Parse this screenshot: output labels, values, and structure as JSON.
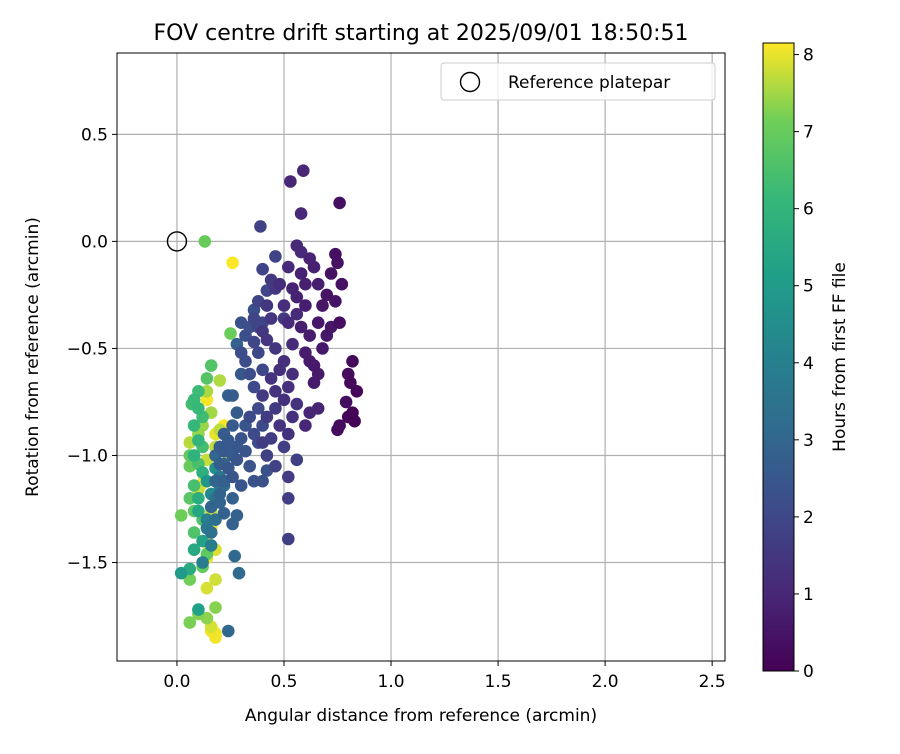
{
  "chart_data": {
    "type": "scatter",
    "title": "FOV centre drift starting at 2025/09/01 18:50:51",
    "xlabel": "Angular distance from reference (arcmin)",
    "ylabel": "Rotation from reference (arcmin)",
    "xlim": [
      -0.28,
      2.56
    ],
    "ylim": [
      -1.96,
      0.88
    ],
    "x_ticks": [
      0.0,
      0.5,
      1.0,
      1.5,
      2.0,
      2.5
    ],
    "x_tick_labels": [
      "0.0",
      "0.5",
      "1.0",
      "1.5",
      "2.0",
      "2.5"
    ],
    "y_ticks": [
      0.5,
      0.0,
      -0.5,
      -1.0,
      -1.5
    ],
    "y_tick_labels": [
      "0.5",
      "0.0",
      "−0.5",
      "−1.0",
      "−1.5"
    ],
    "grid": true,
    "colormap": "viridis",
    "colorbar": {
      "label": "Hours from first FF file",
      "range": [
        0,
        8.15
      ],
      "ticks": [
        0,
        1,
        2,
        3,
        4,
        5,
        6,
        7,
        8
      ],
      "tick_labels": [
        "0",
        "1",
        "2",
        "3",
        "4",
        "5",
        "6",
        "7",
        "8"
      ]
    },
    "legend": {
      "placement": "upper-right",
      "entries": [
        {
          "label": "Reference platepar",
          "marker": "open-circle"
        }
      ]
    },
    "reference_point": {
      "x": 0.0,
      "y": 0.0
    },
    "points": [
      [
        0.82,
        -0.8,
        0.05
      ],
      [
        0.83,
        -0.84,
        0.08
      ],
      [
        0.8,
        -0.82,
        0.12
      ],
      [
        0.84,
        -0.7,
        0.15
      ],
      [
        0.81,
        -0.66,
        0.18
      ],
      [
        0.82,
        -0.56,
        0.22
      ],
      [
        0.8,
        -0.62,
        0.25
      ],
      [
        0.76,
        -0.86,
        0.28
      ],
      [
        0.75,
        -0.88,
        0.3
      ],
      [
        0.79,
        -0.75,
        0.32
      ],
      [
        0.76,
        -0.38,
        0.35
      ],
      [
        0.74,
        -0.06,
        0.38
      ],
      [
        0.76,
        0.18,
        0.4
      ],
      [
        0.75,
        -0.1,
        0.42
      ],
      [
        0.77,
        -0.2,
        0.44
      ],
      [
        0.72,
        -0.15,
        0.46
      ],
      [
        0.7,
        -0.25,
        0.48
      ],
      [
        0.74,
        -0.28,
        0.5
      ],
      [
        0.68,
        -0.3,
        0.52
      ],
      [
        0.72,
        -0.4,
        0.54
      ],
      [
        0.7,
        -0.44,
        0.56
      ],
      [
        0.66,
        -0.38,
        0.58
      ],
      [
        0.68,
        -0.5,
        0.6
      ],
      [
        0.64,
        -0.58,
        0.62
      ],
      [
        0.66,
        -0.62,
        0.64
      ],
      [
        0.62,
        -0.56,
        0.66
      ],
      [
        0.64,
        -0.66,
        0.68
      ],
      [
        0.6,
        -0.52,
        0.7
      ],
      [
        0.62,
        -0.44,
        0.72
      ],
      [
        0.58,
        -0.4,
        0.74
      ],
      [
        0.6,
        -0.3,
        0.76
      ],
      [
        0.66,
        -0.2,
        0.78
      ],
      [
        0.64,
        -0.12,
        0.8
      ],
      [
        0.6,
        -0.2,
        0.82
      ],
      [
        0.56,
        -0.26,
        0.84
      ],
      [
        0.58,
        -0.15,
        0.86
      ],
      [
        0.54,
        -0.22,
        0.88
      ],
      [
        0.62,
        -0.08,
        0.9
      ],
      [
        0.66,
        -0.78,
        0.92
      ],
      [
        0.62,
        -0.8,
        0.94
      ],
      [
        0.6,
        -0.86,
        0.96
      ],
      [
        0.59,
        0.33,
        0.98
      ],
      [
        0.53,
        0.28,
        1.0
      ],
      [
        0.58,
        0.13,
        1.02
      ],
      [
        0.56,
        -0.02,
        1.04
      ],
      [
        0.58,
        -0.05,
        1.06
      ],
      [
        0.52,
        -0.12,
        1.08
      ],
      [
        0.56,
        -0.34,
        1.1
      ],
      [
        0.52,
        -0.38,
        1.12
      ],
      [
        0.54,
        -0.48,
        1.14
      ],
      [
        0.5,
        -0.3,
        1.16
      ],
      [
        0.48,
        -0.2,
        1.18
      ],
      [
        0.54,
        -0.62,
        1.2
      ],
      [
        0.5,
        -0.56,
        1.22
      ],
      [
        0.52,
        -0.68,
        1.24
      ],
      [
        0.48,
        -0.6,
        1.26
      ],
      [
        0.5,
        -0.74,
        1.28
      ],
      [
        0.54,
        -0.82,
        1.3
      ],
      [
        0.56,
        -0.76,
        1.32
      ],
      [
        0.52,
        -0.9,
        1.34
      ],
      [
        0.48,
        -0.86,
        1.36
      ],
      [
        0.46,
        -0.7,
        1.38
      ],
      [
        0.44,
        -0.64,
        1.4
      ],
      [
        0.46,
        -0.5,
        1.42
      ],
      [
        0.42,
        -0.46,
        1.44
      ],
      [
        0.44,
        -0.36,
        1.46
      ],
      [
        0.4,
        -0.42,
        1.48
      ],
      [
        0.46,
        -0.22,
        1.5
      ],
      [
        0.42,
        -0.3,
        1.52
      ],
      [
        0.44,
        -0.18,
        1.54
      ],
      [
        0.5,
        -0.36,
        1.56
      ],
      [
        0.46,
        -0.78,
        1.58
      ],
      [
        0.42,
        -0.82,
        1.6
      ],
      [
        0.4,
        -0.72,
        1.62
      ],
      [
        0.44,
        -0.92,
        1.64
      ],
      [
        0.4,
        -0.94,
        1.66
      ],
      [
        0.52,
        -1.1,
        1.68
      ],
      [
        0.52,
        -1.2,
        1.7
      ],
      [
        0.52,
        -1.39,
        1.72
      ],
      [
        0.56,
        -1.02,
        1.74
      ],
      [
        0.5,
        -0.96,
        1.76
      ],
      [
        0.46,
        -1.05,
        1.78
      ],
      [
        0.42,
        -1.0,
        1.8
      ],
      [
        0.39,
        0.07,
        1.82
      ],
      [
        0.46,
        -0.07,
        1.84
      ],
      [
        0.4,
        -0.13,
        1.86
      ],
      [
        0.38,
        -0.28,
        1.88
      ],
      [
        0.42,
        -0.23,
        1.9
      ],
      [
        0.36,
        -0.36,
        1.92
      ],
      [
        0.4,
        -0.38,
        1.94
      ],
      [
        0.38,
        -0.4,
        1.96
      ],
      [
        0.36,
        -0.47,
        1.98
      ],
      [
        0.38,
        -0.52,
        2.0
      ],
      [
        0.4,
        -0.6,
        2.02
      ],
      [
        0.36,
        -0.68,
        2.04
      ],
      [
        0.38,
        -0.78,
        2.06
      ],
      [
        0.34,
        -0.82,
        2.08
      ],
      [
        0.36,
        -0.9,
        2.1
      ],
      [
        0.4,
        -0.86,
        2.12
      ],
      [
        0.38,
        -0.94,
        2.14
      ],
      [
        0.34,
        -0.62,
        2.16
      ],
      [
        0.32,
        -0.56,
        2.18
      ],
      [
        0.3,
        -0.52,
        2.2
      ],
      [
        0.34,
        -0.4,
        2.22
      ],
      [
        0.32,
        -0.44,
        2.24
      ],
      [
        0.3,
        -0.38,
        2.26
      ],
      [
        0.36,
        -0.32,
        2.28
      ],
      [
        0.4,
        -1.12,
        2.3
      ],
      [
        0.36,
        -1.12,
        2.32
      ],
      [
        0.42,
        -1.07,
        2.34
      ],
      [
        0.34,
        -1.05,
        2.36
      ],
      [
        0.32,
        -0.98,
        2.38
      ],
      [
        0.3,
        -0.92,
        2.4
      ],
      [
        0.28,
        -1.02,
        2.42
      ],
      [
        0.32,
        -0.86,
        2.44
      ],
      [
        0.26,
        -1.1,
        2.46
      ],
      [
        0.3,
        -1.14,
        2.48
      ],
      [
        0.24,
        -1.06,
        2.5
      ],
      [
        0.28,
        -0.96,
        2.52
      ],
      [
        0.3,
        -0.62,
        2.54
      ],
      [
        0.22,
        -0.98,
        2.56
      ],
      [
        0.24,
        -0.93,
        2.58
      ],
      [
        0.26,
        -0.86,
        2.6
      ],
      [
        0.2,
        -0.96,
        2.62
      ],
      [
        0.22,
        -0.9,
        2.64
      ],
      [
        0.28,
        -0.8,
        2.66
      ],
      [
        0.26,
        -0.72,
        2.68
      ],
      [
        0.24,
        -0.96,
        2.7
      ],
      [
        0.2,
        -1.04,
        2.72
      ],
      [
        0.26,
        -1.0,
        2.74
      ],
      [
        0.24,
        -0.72,
        2.76
      ],
      [
        0.28,
        -0.48,
        2.78
      ],
      [
        0.22,
        -1.12,
        2.8
      ],
      [
        0.26,
        -1.2,
        2.82
      ],
      [
        0.22,
        -1.27,
        2.84
      ],
      [
        0.26,
        -1.32,
        2.86
      ],
      [
        0.28,
        -1.28,
        2.88
      ],
      [
        0.2,
        -1.18,
        2.9
      ],
      [
        0.18,
        -1.12,
        2.92
      ],
      [
        0.2,
        -1.22,
        2.94
      ],
      [
        0.16,
        -1.24,
        2.96
      ],
      [
        0.22,
        -1.04,
        2.98
      ],
      [
        0.18,
        -1.0,
        3.0
      ],
      [
        0.24,
        -1.82,
        3.05
      ],
      [
        0.27,
        -1.47,
        3.1
      ],
      [
        0.29,
        -1.55,
        3.15
      ],
      [
        0.22,
        -1.14,
        3.2
      ],
      [
        0.18,
        -1.3,
        3.3
      ],
      [
        0.16,
        -1.36,
        3.4
      ],
      [
        0.18,
        -1.2,
        3.5
      ],
      [
        0.2,
        -1.1,
        3.6
      ],
      [
        0.14,
        -1.34,
        3.7
      ],
      [
        0.16,
        -1.42,
        3.8
      ],
      [
        0.12,
        -1.5,
        3.9
      ],
      [
        0.14,
        -1.3,
        4.0
      ],
      [
        0.2,
        -1.16,
        4.2
      ],
      [
        0.16,
        -1.18,
        4.4
      ],
      [
        0.18,
        -1.06,
        4.6
      ],
      [
        0.14,
        -1.12,
        4.8
      ],
      [
        0.02,
        -1.55,
        5.0
      ],
      [
        0.1,
        -1.72,
        5.2
      ],
      [
        0.12,
        -1.4,
        5.3
      ],
      [
        0.1,
        -1.26,
        5.4
      ],
      [
        0.08,
        -1.44,
        5.5
      ],
      [
        0.06,
        -1.53,
        5.6
      ],
      [
        0.1,
        -1.2,
        5.7
      ],
      [
        0.12,
        -1.08,
        5.8
      ],
      [
        0.08,
        -1.0,
        5.9
      ],
      [
        0.1,
        -0.93,
        6.0
      ],
      [
        0.08,
        -0.86,
        6.1
      ],
      [
        0.1,
        -0.78,
        6.15
      ],
      [
        0.08,
        -0.74,
        6.2
      ],
      [
        0.1,
        -0.7,
        6.25
      ],
      [
        0.12,
        -0.82,
        6.3
      ],
      [
        0.07,
        -0.76,
        6.35
      ],
      [
        0.12,
        -0.96,
        6.4
      ],
      [
        0.08,
        -1.14,
        6.45
      ],
      [
        0.1,
        -1.04,
        6.5
      ],
      [
        0.12,
        -1.3,
        6.55
      ],
      [
        0.08,
        -1.36,
        6.6
      ],
      [
        0.16,
        -0.58,
        6.65
      ],
      [
        0.14,
        -0.64,
        6.7
      ],
      [
        0.06,
        -1.2,
        6.75
      ],
      [
        0.08,
        -1.26,
        6.8
      ],
      [
        0.14,
        -1.46,
        6.85
      ],
      [
        0.12,
        -1.52,
        6.9
      ],
      [
        0.06,
        -1.0,
        6.95
      ],
      [
        0.06,
        -1.05,
        7.0
      ],
      [
        0.13,
        0.0,
        7.0
      ],
      [
        0.25,
        -0.43,
        7.05
      ],
      [
        0.02,
        -1.28,
        7.1
      ],
      [
        0.06,
        -1.58,
        7.15
      ],
      [
        0.06,
        -1.78,
        7.2
      ],
      [
        0.1,
        -1.74,
        7.25
      ],
      [
        0.18,
        -1.71,
        7.3
      ],
      [
        0.14,
        -1.76,
        7.35
      ],
      [
        0.1,
        -0.9,
        7.4
      ],
      [
        0.12,
        -0.86,
        7.45
      ],
      [
        0.16,
        -0.8,
        7.5
      ],
      [
        0.14,
        -0.7,
        7.55
      ],
      [
        0.2,
        -0.65,
        7.6
      ],
      [
        0.06,
        -0.94,
        7.65
      ],
      [
        0.2,
        -0.88,
        7.7
      ],
      [
        0.18,
        -0.96,
        7.72
      ],
      [
        0.14,
        -1.02,
        7.75
      ],
      [
        0.1,
        -1.16,
        7.78
      ],
      [
        0.16,
        -1.26,
        7.8
      ],
      [
        0.18,
        -1.58,
        7.82
      ],
      [
        0.16,
        -1.8,
        7.85
      ],
      [
        0.14,
        -1.62,
        7.88
      ],
      [
        0.18,
        -1.44,
        7.9
      ],
      [
        0.2,
        -1.14,
        7.92
      ],
      [
        0.24,
        -1.0,
        7.95
      ],
      [
        0.18,
        -0.9,
        7.97
      ],
      [
        0.16,
        -1.34,
        8.0
      ],
      [
        0.14,
        -1.48,
        8.02
      ],
      [
        0.18,
        -1.83,
        8.05
      ],
      [
        0.16,
        -1.82,
        8.07
      ],
      [
        0.18,
        -1.85,
        8.08
      ],
      [
        0.14,
        -0.74,
        8.1
      ],
      [
        0.16,
        -1.18,
        8.11
      ],
      [
        0.12,
        -1.13,
        8.12
      ],
      [
        0.14,
        -1.41,
        8.13
      ],
      [
        0.26,
        -0.1,
        8.14
      ],
      [
        0.22,
        -0.86,
        8.15
      ]
    ]
  }
}
